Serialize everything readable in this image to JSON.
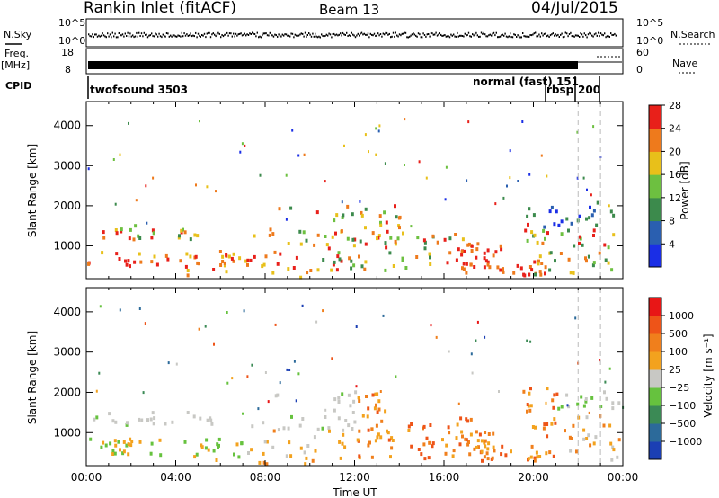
{
  "header": {
    "station": "Rankin Inlet (fitACF)",
    "beam": "Beam 13",
    "date": "04/Jul/2015"
  },
  "status_panel": {
    "nsky_label": "N.Sky",
    "nsky_ticks": [
      "10^5",
      "10^0"
    ],
    "nsearch_label": "N.Search",
    "nsearch_ticks": [
      "10^5",
      "10^0"
    ],
    "freq_label_1": "Freq.",
    "freq_label_2": "[MHz]",
    "freq_ticks": [
      "18",
      "8"
    ],
    "nave_label": "Nave",
    "nave_ticks": [
      "60",
      "0"
    ],
    "cpid_label": "CPID",
    "cpid_annotations": [
      "twofsound 3503",
      "normal (fast) 151",
      "rbsp",
      "200"
    ]
  },
  "chart_data": [
    {
      "type": "heatmap",
      "title": "",
      "xlabel": "",
      "ylabel": "Slant Range [km]",
      "xlim": [
        0,
        24
      ],
      "ylim": [
        180,
        4600
      ],
      "x_tick_labels": [
        "00:00",
        "04:00",
        "08:00",
        "12:00",
        "16:00",
        "20:00",
        "00:00"
      ],
      "y_tick_labels": [
        "1000",
        "2000",
        "3000",
        "4000"
      ],
      "colorbar": {
        "label": "Power [dB]",
        "ticks": [
          "4",
          "8",
          "12",
          "16",
          "20",
          "24",
          "28"
        ],
        "colors": [
          "#1a2ee6",
          "#2a5fb0",
          "#3c8a4c",
          "#6dc040",
          "#e8c01a",
          "#ee7a1c",
          "#e8201a"
        ]
      }
    },
    {
      "type": "heatmap",
      "title": "",
      "xlabel": "Time UT",
      "ylabel": "Slant Range [km]",
      "xlim": [
        0,
        24
      ],
      "ylim": [
        180,
        4600
      ],
      "x_tick_labels": [
        "00:00",
        "04:00",
        "08:00",
        "12:00",
        "16:00",
        "20:00",
        "00:00"
      ],
      "y_tick_labels": [
        "1000",
        "2000",
        "3000",
        "4000"
      ],
      "colorbar": {
        "label": "Velocity [m s⁻¹]",
        "ticks": [
          "1000",
          "500",
          "100",
          "25",
          "−25",
          "−100",
          "−500",
          "−1000"
        ],
        "colors": [
          "#1b3fb4",
          "#2c6a9a",
          "#3b8a55",
          "#66c23e",
          "#c8c8c4",
          "#f3a21e",
          "#f07f1c",
          "#ee5418",
          "#e81616"
        ]
      }
    }
  ]
}
